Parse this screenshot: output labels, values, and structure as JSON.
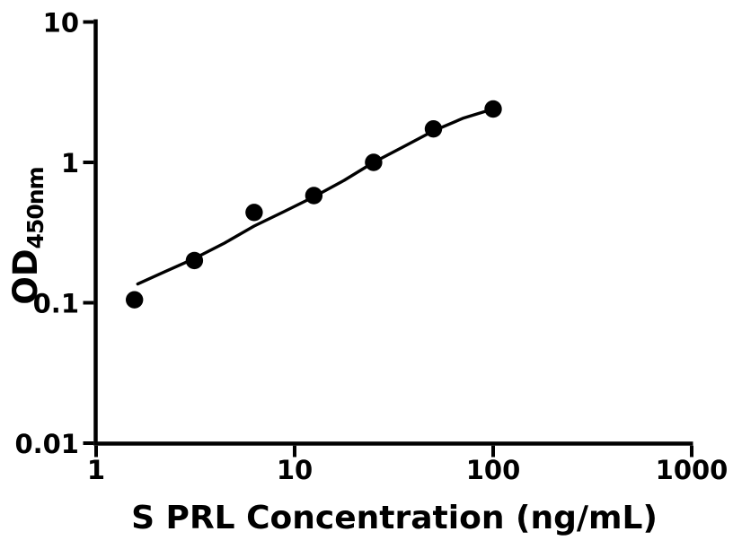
{
  "figure": {
    "background_color": "#ffffff",
    "foreground_color": "#000000"
  },
  "chart_data": {
    "type": "scatter",
    "title": "",
    "xlabel": "S PRL Concentration (ng/mL)",
    "ylabel_main": "OD",
    "ylabel_sub": "450nm",
    "x_scale": "log",
    "y_scale": "log",
    "xlim": [
      1,
      1000
    ],
    "ylim": [
      0.01,
      10
    ],
    "grid": false,
    "legend": null,
    "marker_color": "#000000",
    "line_color": "#000000",
    "x_ticks": [
      {
        "value": 1,
        "label": "1"
      },
      {
        "value": 10,
        "label": "10"
      },
      {
        "value": 100,
        "label": "100"
      },
      {
        "value": 1000,
        "label": "1000"
      }
    ],
    "y_ticks": [
      {
        "value": 10,
        "label": "10"
      },
      {
        "value": 1,
        "label": "1"
      },
      {
        "value": 0.1,
        "label": "0.1"
      },
      {
        "value": 0.01,
        "label": "0.01"
      }
    ],
    "points": [
      {
        "x": 1.56,
        "y": 0.105
      },
      {
        "x": 3.125,
        "y": 0.2
      },
      {
        "x": 6.25,
        "y": 0.44
      },
      {
        "x": 12.5,
        "y": 0.58
      },
      {
        "x": 25,
        "y": 1.0
      },
      {
        "x": 50,
        "y": 1.73
      },
      {
        "x": 100,
        "y": 2.4
      }
    ],
    "fit_curve": [
      [
        1.62,
        0.136
      ],
      [
        2.21,
        0.166
      ],
      [
        3.11,
        0.206
      ],
      [
        4.43,
        0.266
      ],
      [
        6.25,
        0.352
      ],
      [
        8.82,
        0.445
      ],
      [
        12.44,
        0.567
      ],
      [
        17.77,
        0.745
      ],
      [
        25,
        1.0
      ],
      [
        35.2,
        1.29
      ],
      [
        49.8,
        1.67
      ],
      [
        70.9,
        2.07
      ],
      [
        100,
        2.4
      ]
    ]
  }
}
